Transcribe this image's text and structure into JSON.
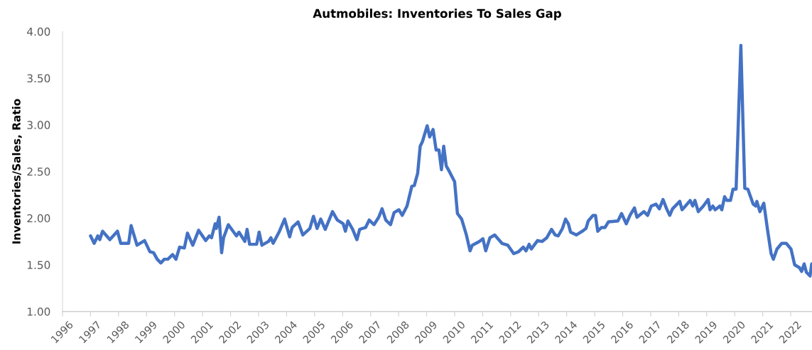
{
  "chart_data": {
    "type": "line",
    "title": "Autmobiles: Inventories To Sales Gap",
    "ylabel": "Inventories/Sales, Ratio",
    "xlim": [
      1996,
      2022.76
    ],
    "xticks": [
      1996,
      1997,
      1998,
      1999,
      2000,
      2001,
      2002,
      2003,
      2004,
      2005,
      2006,
      2007,
      2008,
      2009,
      2010,
      2011,
      2012,
      2013,
      2014,
      2015,
      2016,
      2017,
      2018,
      2019,
      2020,
      2021,
      2022
    ],
    "ylim": [
      1,
      4
    ],
    "yticks": [
      {
        "value": 1,
        "label": "1.00"
      },
      {
        "value": 1.5,
        "label": "1.50"
      },
      {
        "value": 2,
        "label": "2.00"
      },
      {
        "value": 2.5,
        "label": "2.50"
      },
      {
        "value": 3,
        "label": "3.00"
      },
      {
        "value": 3.5,
        "label": "3.50"
      },
      {
        "value": 4,
        "label": "4.00"
      }
    ],
    "grid": false,
    "legend": false,
    "marker": "none",
    "line_style": "solid",
    "series": [
      {
        "color": "#4472c4",
        "x": [
          1997.0,
          1997.13,
          1997.26,
          1997.33,
          1997.43,
          1997.69,
          1997.96,
          1998.08,
          1998.36,
          1998.45,
          1998.66,
          1998.93,
          1999.12,
          1999.25,
          1999.38,
          1999.51,
          1999.63,
          1999.76,
          1999.93,
          2000.05,
          2000.18,
          2000.35,
          2000.46,
          2000.65,
          2000.86,
          2001.11,
          2001.24,
          2001.32,
          2001.45,
          2001.49,
          2001.59,
          2001.68,
          2001.75,
          2001.92,
          2002.21,
          2002.3,
          2002.51,
          2002.59,
          2002.68,
          2002.93,
          2003.02,
          2003.12,
          2003.35,
          2003.44,
          2003.52,
          2003.73,
          2003.93,
          2004.11,
          2004.2,
          2004.41,
          2004.58,
          2004.83,
          2004.96,
          2005.09,
          2005.22,
          2005.38,
          2005.64,
          2005.81,
          2006.02,
          2006.1,
          2006.19,
          2006.36,
          2006.51,
          2006.61,
          2006.82,
          2006.95,
          2007.12,
          2007.29,
          2007.41,
          2007.54,
          2007.71,
          2007.84,
          2008.01,
          2008.13,
          2008.3,
          2008.47,
          2008.56,
          2008.68,
          2008.77,
          2008.85,
          2009.02,
          2009.11,
          2009.23,
          2009.34,
          2009.44,
          2009.53,
          2009.61,
          2009.7,
          2009.83,
          2010.0,
          2010.1,
          2010.25,
          2010.42,
          2010.55,
          2010.63,
          2010.88,
          2011.01,
          2011.11,
          2011.26,
          2011.43,
          2011.69,
          2011.9,
          2012.11,
          2012.28,
          2012.45,
          2012.55,
          2012.66,
          2012.74,
          2012.96,
          2013.12,
          2013.29,
          2013.46,
          2013.59,
          2013.7,
          2013.85,
          2013.96,
          2014.06,
          2014.14,
          2014.35,
          2014.56,
          2014.69,
          2014.77,
          2014.94,
          2015.03,
          2015.11,
          2015.24,
          2015.37,
          2015.49,
          2015.83,
          2015.96,
          2016.13,
          2016.26,
          2016.42,
          2016.51,
          2016.76,
          2016.89,
          2017.02,
          2017.19,
          2017.31,
          2017.44,
          2017.57,
          2017.68,
          2017.78,
          2018.04,
          2018.12,
          2018.24,
          2018.41,
          2018.5,
          2018.58,
          2018.7,
          2018.88,
          2019.05,
          2019.12,
          2019.22,
          2019.3,
          2019.47,
          2019.54,
          2019.64,
          2019.72,
          2019.85,
          2019.94,
          2020.05,
          2020.22,
          2020.36,
          2020.47,
          2020.66,
          2020.75,
          2020.79,
          2020.9,
          2021.04,
          2021.17,
          2021.3,
          2021.38,
          2021.51,
          2021.68,
          2021.84,
          2022.01,
          2022.14,
          2022.31,
          2022.39,
          2022.48,
          2022.56,
          2022.69,
          2022.75
        ],
        "values": [
          1.81,
          1.73,
          1.81,
          1.77,
          1.86,
          1.77,
          1.86,
          1.73,
          1.73,
          1.92,
          1.71,
          1.76,
          1.64,
          1.63,
          1.56,
          1.52,
          1.56,
          1.56,
          1.61,
          1.56,
          1.69,
          1.68,
          1.84,
          1.71,
          1.87,
          1.76,
          1.81,
          1.79,
          1.94,
          1.89,
          2.01,
          1.63,
          1.79,
          1.93,
          1.81,
          1.85,
          1.75,
          1.88,
          1.72,
          1.72,
          1.85,
          1.71,
          1.75,
          1.79,
          1.73,
          1.85,
          1.99,
          1.8,
          1.9,
          1.96,
          1.82,
          1.89,
          2.02,
          1.89,
          1.99,
          1.88,
          2.07,
          1.98,
          1.94,
          1.86,
          1.97,
          1.88,
          1.77,
          1.88,
          1.9,
          1.98,
          1.93,
          2.01,
          2.1,
          1.98,
          1.93,
          2.06,
          2.09,
          2.03,
          2.13,
          2.34,
          2.35,
          2.48,
          2.77,
          2.82,
          2.99,
          2.87,
          2.95,
          2.73,
          2.73,
          2.52,
          2.77,
          2.56,
          2.49,
          2.39,
          2.05,
          1.99,
          1.82,
          1.65,
          1.71,
          1.75,
          1.78,
          1.65,
          1.79,
          1.82,
          1.73,
          1.71,
          1.62,
          1.64,
          1.69,
          1.65,
          1.72,
          1.67,
          1.76,
          1.75,
          1.79,
          1.88,
          1.82,
          1.81,
          1.89,
          1.99,
          1.94,
          1.85,
          1.82,
          1.86,
          1.89,
          1.97,
          2.03,
          2.03,
          1.86,
          1.9,
          1.9,
          1.96,
          1.97,
          2.05,
          1.94,
          2.03,
          2.11,
          2.01,
          2.07,
          2.03,
          2.13,
          2.15,
          2.1,
          2.2,
          2.1,
          2.03,
          2.1,
          2.18,
          2.09,
          2.13,
          2.19,
          2.13,
          2.19,
          2.07,
          2.13,
          2.2,
          2.09,
          2.13,
          2.09,
          2.13,
          2.09,
          2.23,
          2.19,
          2.19,
          2.31,
          2.31,
          3.85,
          2.32,
          2.31,
          2.15,
          2.13,
          2.18,
          2.07,
          2.16,
          1.88,
          1.62,
          1.56,
          1.67,
          1.73,
          1.73,
          1.67,
          1.5,
          1.47,
          1.43,
          1.51,
          1.42,
          1.38,
          1.51
        ]
      }
    ]
  }
}
